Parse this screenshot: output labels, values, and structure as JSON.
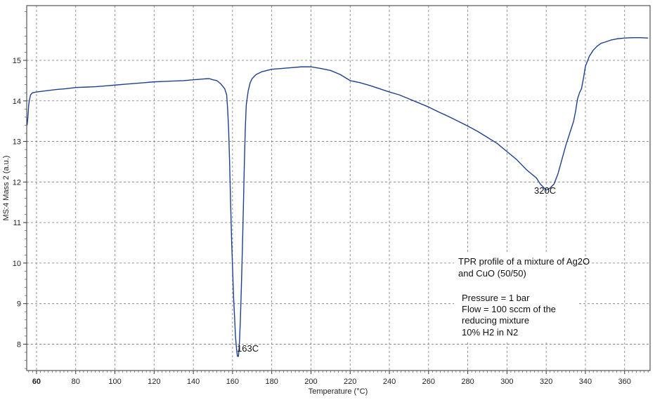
{
  "chart_data": {
    "type": "line",
    "title": "",
    "xlabel": "Temperature (°C)",
    "ylabel": "MS:4  Mass 2 (a.u.)",
    "xlim": [
      55,
      373
    ],
    "ylim": [
      7.35,
      16.35
    ],
    "grid": true,
    "x_ticks": [
      60,
      80,
      100,
      120,
      140,
      160,
      180,
      200,
      220,
      240,
      260,
      280,
      300,
      320,
      340,
      360
    ],
    "x_tick_labels": [
      "60",
      "80",
      "100",
      "120",
      "140",
      "160",
      "180",
      "200",
      "220",
      "240",
      "260",
      "280",
      "300",
      "320",
      "340",
      "360"
    ],
    "y_ticks": [
      8,
      9,
      10,
      11,
      12,
      13,
      14,
      15
    ],
    "y_tick_labels": [
      "8",
      "9",
      "10",
      "11",
      "12",
      "13",
      "14",
      "15"
    ],
    "series": [
      {
        "color": "#1f3f8f",
        "points": [
          [
            55.2,
            13.4
          ],
          [
            55.6,
            13.6
          ],
          [
            56.0,
            13.9
          ],
          [
            56.5,
            14.05
          ],
          [
            57.0,
            14.15
          ],
          [
            57.5,
            14.18
          ],
          [
            58,
            14.2
          ],
          [
            60,
            14.22
          ],
          [
            65,
            14.25
          ],
          [
            70,
            14.28
          ],
          [
            75,
            14.3
          ],
          [
            80,
            14.33
          ],
          [
            85,
            14.34
          ],
          [
            90,
            14.35
          ],
          [
            95,
            14.37
          ],
          [
            100,
            14.39
          ],
          [
            105,
            14.41
          ],
          [
            110,
            14.43
          ],
          [
            115,
            14.45
          ],
          [
            120,
            14.47
          ],
          [
            125,
            14.48
          ],
          [
            130,
            14.49
          ],
          [
            135,
            14.5
          ],
          [
            140,
            14.52
          ],
          [
            145,
            14.54
          ],
          [
            148,
            14.55
          ],
          [
            150,
            14.52
          ],
          [
            152,
            14.5
          ],
          [
            154,
            14.42
          ],
          [
            156,
            14.3
          ],
          [
            157,
            14.15
          ],
          [
            157.5,
            13.8
          ],
          [
            158,
            13.3
          ],
          [
            158.5,
            12.5
          ],
          [
            159,
            11.5
          ],
          [
            159.5,
            10.6
          ],
          [
            160,
            9.9
          ],
          [
            160.5,
            9.2
          ],
          [
            161,
            8.7
          ],
          [
            161.5,
            8.2
          ],
          [
            162,
            7.9
          ],
          [
            162.5,
            7.7
          ],
          [
            163,
            7.7
          ],
          [
            163.5,
            8.0
          ],
          [
            164,
            8.6
          ],
          [
            164.5,
            9.4
          ],
          [
            165,
            10.3
          ],
          [
            165.5,
            11.3
          ],
          [
            166,
            12.4
          ],
          [
            166.5,
            13.3
          ],
          [
            167,
            13.9
          ],
          [
            168,
            14.25
          ],
          [
            169,
            14.45
          ],
          [
            170,
            14.55
          ],
          [
            172,
            14.65
          ],
          [
            175,
            14.72
          ],
          [
            180,
            14.78
          ],
          [
            185,
            14.8
          ],
          [
            190,
            14.82
          ],
          [
            195,
            14.84
          ],
          [
            200,
            14.84
          ],
          [
            205,
            14.8
          ],
          [
            210,
            14.75
          ],
          [
            215,
            14.65
          ],
          [
            220,
            14.5
          ],
          [
            225,
            14.45
          ],
          [
            230,
            14.38
          ],
          [
            235,
            14.3
          ],
          [
            240,
            14.22
          ],
          [
            245,
            14.15
          ],
          [
            250,
            14.05
          ],
          [
            255,
            13.95
          ],
          [
            260,
            13.85
          ],
          [
            265,
            13.73
          ],
          [
            270,
            13.62
          ],
          [
            275,
            13.5
          ],
          [
            280,
            13.38
          ],
          [
            285,
            13.25
          ],
          [
            290,
            13.1
          ],
          [
            295,
            12.95
          ],
          [
            300,
            12.75
          ],
          [
            305,
            12.55
          ],
          [
            310,
            12.3
          ],
          [
            315,
            12.1
          ],
          [
            317,
            11.95
          ],
          [
            319,
            11.85
          ],
          [
            320,
            11.8
          ],
          [
            322,
            11.85
          ],
          [
            324,
            11.95
          ],
          [
            326,
            12.2
          ],
          [
            328,
            12.55
          ],
          [
            330,
            12.9
          ],
          [
            332,
            13.2
          ],
          [
            334,
            13.5
          ],
          [
            335,
            13.75
          ],
          [
            336,
            14.05
          ],
          [
            337,
            14.2
          ],
          [
            338,
            14.3
          ],
          [
            339,
            14.55
          ],
          [
            340,
            14.85
          ],
          [
            342,
            15.1
          ],
          [
            344,
            15.25
          ],
          [
            346,
            15.35
          ],
          [
            348,
            15.42
          ],
          [
            350,
            15.45
          ],
          [
            353,
            15.5
          ],
          [
            356,
            15.53
          ],
          [
            360,
            15.55
          ],
          [
            364,
            15.56
          ],
          [
            368,
            15.56
          ],
          [
            372,
            15.55
          ]
        ]
      }
    ],
    "annotations": {
      "peak1": "163C",
      "peak2": "320C",
      "desc_line1": "TPR profile of a mixture of Ag2O",
      "desc_line2": "and CuO (50/50)",
      "cond_line1": "Pressure = 1 bar",
      "cond_line2": "Flow = 100 sccm of the",
      "cond_line3": "reducing mixture",
      "cond_line4": "10% H2 in N2"
    }
  }
}
